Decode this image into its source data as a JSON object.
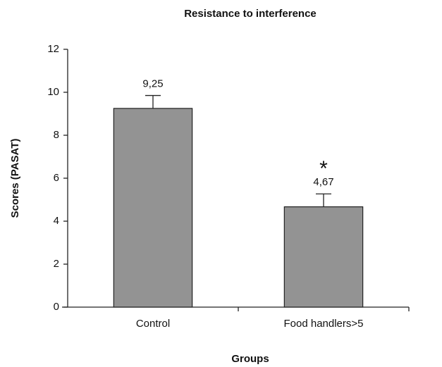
{
  "chart_data": {
    "type": "bar",
    "title": "Resistance to interference",
    "x_label": "Groups",
    "y_label": "Scores (PASAT)",
    "categories": [
      "Control",
      "Food handlers>5"
    ],
    "values": [
      9.25,
      4.67
    ],
    "value_labels": [
      "9,25",
      "4,67"
    ],
    "errors": [
      0.6,
      0.6
    ],
    "annotations": [
      "*"
    ],
    "color": "#939393",
    "ylim": [
      0,
      12
    ],
    "yticks": [
      0,
      2,
      4,
      6,
      8,
      10,
      12
    ],
    "grid": false
  }
}
